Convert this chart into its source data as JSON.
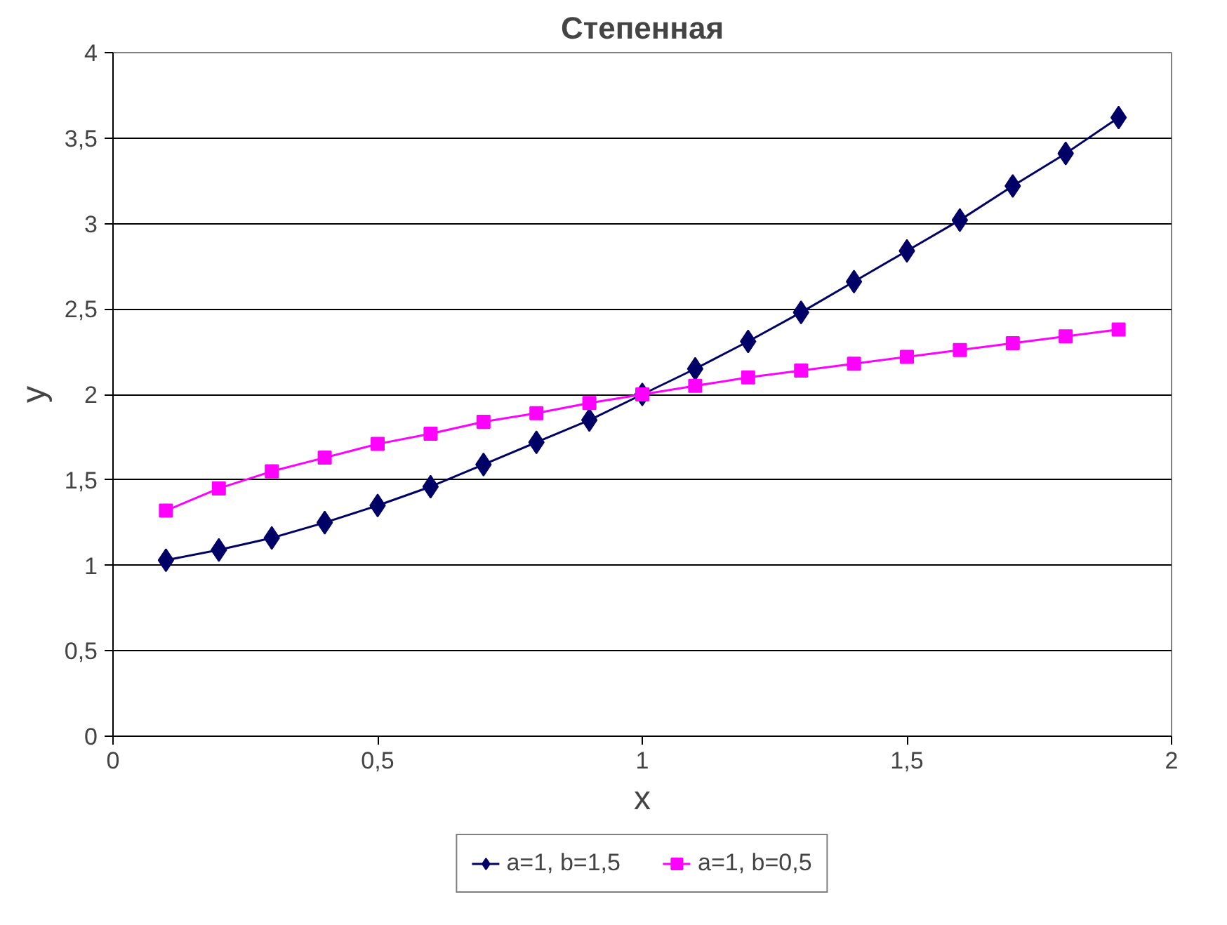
{
  "chart_data": {
    "type": "line",
    "title": "Степенная",
    "xlabel": "x",
    "ylabel": "y",
    "x": [
      0.1,
      0.2,
      0.3,
      0.4,
      0.5,
      0.6,
      0.7,
      0.8,
      0.9,
      1.0,
      1.1,
      1.2,
      1.3,
      1.4,
      1.5,
      1.6,
      1.7,
      1.8,
      1.9
    ],
    "series": [
      {
        "name": "a=1, b=1,5",
        "color": "#000066",
        "marker": "diamond",
        "values": [
          1.03,
          1.09,
          1.16,
          1.25,
          1.35,
          1.46,
          1.59,
          1.72,
          1.85,
          2.0,
          2.15,
          2.31,
          2.48,
          2.66,
          2.84,
          3.02,
          3.22,
          3.41,
          3.62
        ]
      },
      {
        "name": "a=1, b=0,5",
        "color": "#ff00ff",
        "marker": "square",
        "values": [
          1.32,
          1.45,
          1.55,
          1.63,
          1.71,
          1.77,
          1.84,
          1.89,
          1.95,
          2.0,
          2.05,
          2.1,
          2.14,
          2.18,
          2.22,
          2.26,
          2.3,
          2.34,
          2.38
        ]
      }
    ],
    "xlim": [
      0,
      2
    ],
    "ylim": [
      0,
      4
    ],
    "xticks": [
      0,
      {
        "value": 0.5,
        "label": "0,5"
      },
      1,
      {
        "value": 1.5,
        "label": "1,5"
      },
      2
    ],
    "yticks": [
      0,
      {
        "value": 0.5,
        "label": "0,5"
      },
      1,
      {
        "value": 1.5,
        "label": "1,5"
      },
      2,
      {
        "value": 2.5,
        "label": "2,5"
      },
      3,
      {
        "value": 3.5,
        "label": "3,5"
      },
      4
    ],
    "grid": "y",
    "legend": "bottom",
    "line_style": "solid"
  }
}
